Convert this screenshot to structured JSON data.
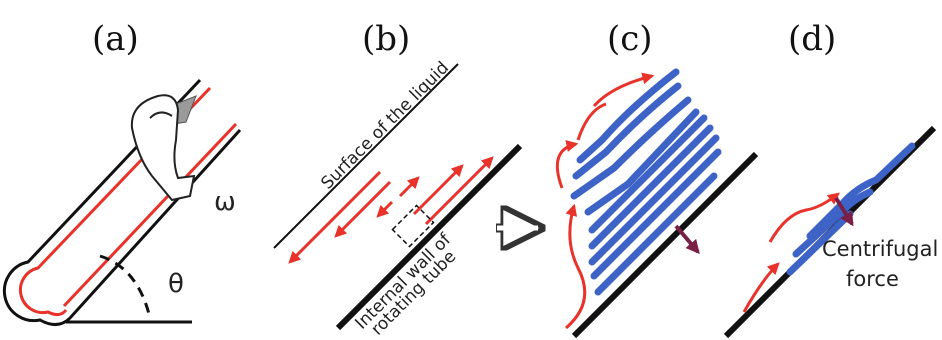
{
  "panels": {
    "a": {
      "label": "(a)",
      "omega_symbol": "ω",
      "theta_symbol": "θ"
    },
    "b": {
      "label": "(b)",
      "surface_label": "Surface of the liquid",
      "wall_label_line1": "Internal wall of",
      "wall_label_line2": "rotating tube"
    },
    "c": {
      "label": "(c)"
    },
    "d": {
      "label": "(d)",
      "force_label_line1": "Centrifugal",
      "force_label_line2": "force"
    }
  },
  "colors": {
    "tube_wall": "#111111",
    "liquid_red": "#e8322a",
    "sheet_blue": "#3d63c7",
    "force_arrow": "#7a1f45",
    "cap_gray": "#9a9a9a"
  }
}
